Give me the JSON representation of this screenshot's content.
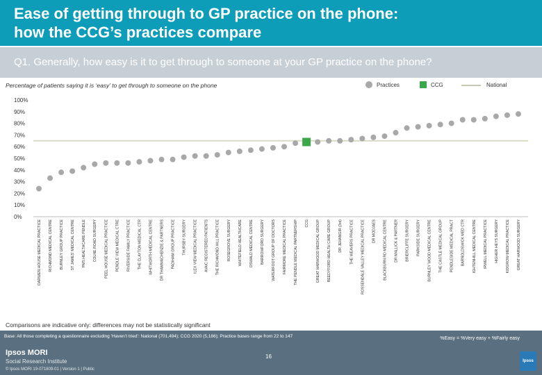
{
  "header": {
    "title": "Ease of getting through to GP practice on the phone:\nhow the CCG’s practices compare"
  },
  "question": "Q1. Generally, how easy is it to get through to someone at your GP practice on the phone?",
  "subtitle": "Percentage of patients saying it is ‘easy’ to get through to someone on the phone",
  "legend": {
    "practices": "Practices",
    "ccg": "CCG",
    "national": "National"
  },
  "colors": {
    "header": "#0e9db8",
    "practice_marker": "#a8a8a8",
    "ccg_marker": "#3aa84a",
    "national_line": "#d9d9c6",
    "legend_practices": "#a8a8a8",
    "legend_ccg": "#3aa84a"
  },
  "caveat": "Comparisons are indicative only: differences may not be statistically significant",
  "footer": {
    "base": "Base: All those completing a questionnaire excluding ‘Haven’t tried’: National (701,494); CCG 2020 (5,186); Practice bases range from 22 to 147",
    "note": "%Easy = %Very easy + %Fairly easy",
    "brand_line1": "Ipsos MORI",
    "brand_line2": "Social Research Institute",
    "copyright": "© Ipsos MORI    19-071809-01 | Version 1 | Public",
    "page": "16",
    "logo_text": "Ipsos"
  },
  "chart_data": {
    "type": "scatter",
    "ylim": [
      0,
      100
    ],
    "yticks": [
      "0%",
      "10%",
      "20%",
      "30%",
      "40%",
      "50%",
      "60%",
      "70%",
      "80%",
      "90%",
      "100%"
    ],
    "national_value": 65,
    "categories": [
      "DARWEN HOUSE MEDICAL PRACTICE",
      "RICHMOND MEDICAL CENTRE",
      "BURNLEY GROUP PRACTICE",
      "ST JAMES' MEDICAL CENTRE",
      "PMS HEALTHCARE PENDLE",
      "COLNE ROAD SURGERY",
      "PEEL HOUSE MEDICAL PRACTICE",
      "PENDLE VIEW MEDICAL CTRE",
      "RIVERSIDE FAMILY PRACTICE",
      "THE CLAYTON MEDICAL CTR",
      "WHITWORTH MEDICAL CENTRE",
      "DR THAMMACHENZIE & PARTNERS",
      "PADIHAM GROUP PRACTICE",
      "THURSBY SURGERY",
      "ILEX VIEW MEDICAL PRACTICE",
      "AVAIC REGISTERED PATIENTS",
      "THE RICHMOND HILL PRACTICE",
      "ROSEGROVE SURGERY",
      "WHITEFIELD HEALTHCARE",
      "OSWALD MEDICAL CENTRE",
      "BARROWFORD SURGERY",
      "WATERFOOT GROUP OF DOCTORS",
      "FAIRMORE MEDICAL PRACTICE",
      "THE PENDLE MEDICAL PARTNERSHIP",
      "CCG",
      "GREAT HARWOOD MEDICAL GROUP",
      "REEDYFORD HEALTH CARE GROUP",
      "DR JEHANGIR (3rd)",
      "THE WEAVERS PRACTICE",
      "ROSSENDALE VALLEY MEDICAL PRACTICE",
      "DR MODJAES",
      "BLACKBURN RD MEDICAL CENTRE",
      "DR MALLICK & PARTNER",
      "BRIERCLIFFE SURGERY",
      "PARKSIDE SURGERY",
      "BURNLEY WOOD MEDICAL CENTRE",
      "THE CASTLE MEDICAL GROUP",
      "PENDLESIDE MEDICAL PRACT",
      "BARNOLDSWICK MED CTR",
      "IGHTENHILL MEDICAL CENTRE",
      "IRWELL MEDICAL PRACTICE",
      "HIGHER HEYS SURGERY",
      "KIDGROW MEDICAL PRACTICE",
      "GREAT HARWOOD SURGERY"
    ],
    "values": [
      24,
      33,
      38,
      39,
      42,
      45,
      46,
      46,
      46,
      47,
      48,
      49,
      49,
      51,
      52,
      52,
      53,
      55,
      56,
      57,
      58,
      59,
      60,
      63,
      64,
      64,
      65,
      65,
      66,
      67,
      68,
      69,
      72,
      76,
      77,
      78,
      79,
      80,
      83,
      83,
      84,
      86,
      87,
      88
    ],
    "highlight_index": 24
  }
}
